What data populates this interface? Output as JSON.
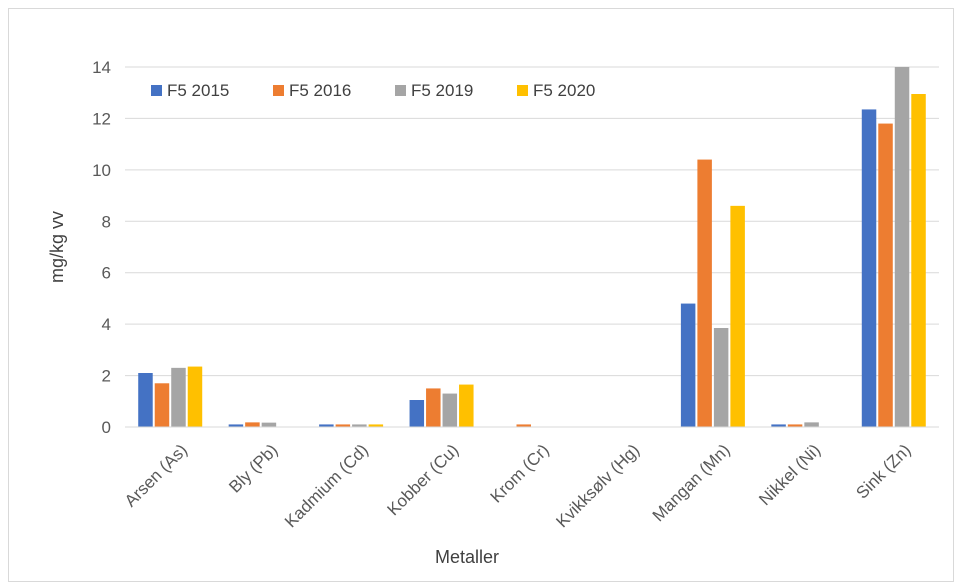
{
  "chart_data": {
    "type": "bar",
    "xlabel": "Metaller",
    "ylabel": "mg/kg vv",
    "ylim": [
      0,
      14
    ],
    "yticks": [
      0,
      2,
      4,
      6,
      8,
      10,
      12,
      14
    ],
    "grid": true,
    "legend_position": "top-left",
    "categories": [
      "Arsen (As)",
      "Bly (Pb)",
      "Kadmium (Cd)",
      "Kobber (Cu)",
      "Krom (Cr)",
      "Kvikksølv (Hg)",
      "Mangan (Mn)",
      "Nikkel (Ni)",
      "Sink (Zn)"
    ],
    "series": [
      {
        "name": "F5 2015",
        "color": "#4472C4",
        "values": [
          2.1,
          0.1,
          0.1,
          1.05,
          0,
          0,
          4.8,
          0.1,
          12.35
        ]
      },
      {
        "name": "F5 2016",
        "color": "#ED7D31",
        "values": [
          1.7,
          0.18,
          0.1,
          1.5,
          0.1,
          0,
          10.4,
          0.1,
          11.8
        ]
      },
      {
        "name": "F5 2019",
        "color": "#A5A5A5",
        "values": [
          2.3,
          0.17,
          0.1,
          1.3,
          0,
          0,
          3.85,
          0.18,
          14.0
        ]
      },
      {
        "name": "F5 2020",
        "color": "#FFC000",
        "values": [
          2.35,
          0,
          0.1,
          1.65,
          0,
          0,
          8.6,
          0,
          12.95
        ]
      }
    ]
  }
}
